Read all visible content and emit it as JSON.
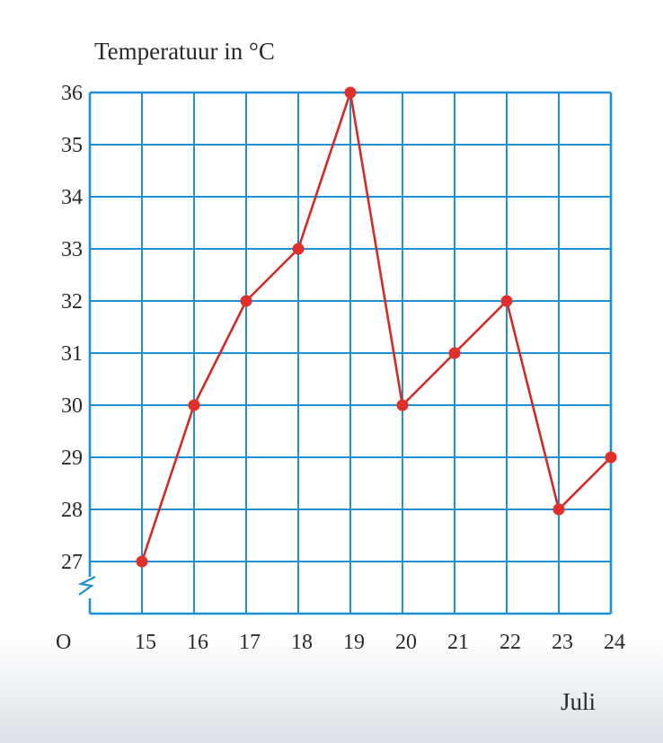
{
  "chart_data": {
    "type": "line",
    "ylabel": "Temperatuur in °C",
    "xlabel": "Juli",
    "origin_label": "O",
    "x": [
      15,
      16,
      17,
      18,
      19,
      20,
      21,
      22,
      23,
      24
    ],
    "series": [
      {
        "values": [
          27,
          30,
          32,
          33,
          36,
          30,
          31,
          32,
          28,
          29
        ]
      }
    ],
    "xlim": [
      14,
      24
    ],
    "ylim": [
      26,
      36
    ],
    "y_ticks": [
      27,
      28,
      29,
      30,
      31,
      32,
      33,
      34,
      35,
      36
    ],
    "axis_break": "y",
    "grid": true,
    "colors": {
      "grid": "#1e90d6",
      "line": "#d42a26",
      "marker": "#e0302b"
    }
  }
}
